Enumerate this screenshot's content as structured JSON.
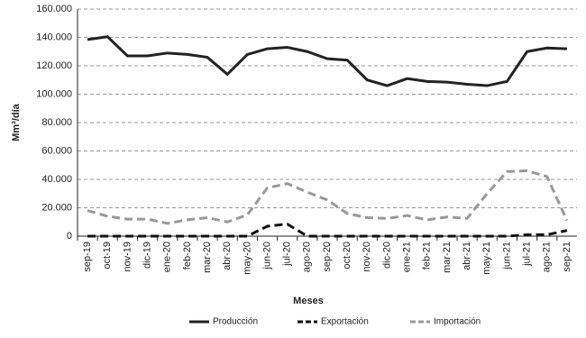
{
  "chart_data": {
    "type": "line",
    "x_label": "Meses",
    "y_label": "Mm³/día",
    "categories": [
      "sep-19",
      "oct-19",
      "nov-19",
      "dic-19",
      "ene-20",
      "feb-20",
      "mar-20",
      "abr-20",
      "may-20",
      "jun-20",
      "jul-20",
      "ago-20",
      "sep-20",
      "oct-20",
      "nov-20",
      "dic-20",
      "ene-21",
      "feb-21",
      "mar-21",
      "abr-21",
      "may-21",
      "jun-21",
      "jul-21",
      "ago-21",
      "sep-21"
    ],
    "series": [
      {
        "name": "Producción",
        "color": "#222222",
        "dash": "solid",
        "values": [
          138500,
          140500,
          127000,
          127000,
          129000,
          128000,
          126000,
          114000,
          128000,
          132000,
          133000,
          130000,
          125000,
          124000,
          110000,
          106000,
          111000,
          109000,
          108500,
          107000,
          106000,
          109000,
          130000,
          132500,
          132000
        ]
      },
      {
        "name": "Exportación",
        "color": "#111111",
        "dash": "dashed",
        "values": [
          0,
          0,
          0,
          0,
          0,
          0,
          0,
          0,
          0,
          7000,
          8500,
          0,
          0,
          0,
          0,
          0,
          0,
          0,
          0,
          0,
          0,
          0,
          1000,
          1000,
          4000
        ]
      },
      {
        "name": "Importación",
        "color": "#999999",
        "dash": "dashed",
        "values": [
          18000,
          14000,
          12000,
          12000,
          9000,
          11500,
          13000,
          10000,
          15000,
          34000,
          37000,
          31000,
          25500,
          16000,
          13000,
          12500,
          14500,
          11500,
          13500,
          12500,
          30000,
          45500,
          46000,
          42000,
          11000
        ]
      }
    ],
    "ylim": [
      0,
      160000
    ],
    "yticks": [
      0,
      {
        "value": 20000,
        "label": "20.000"
      },
      {
        "value": 40000,
        "label": "40.000"
      },
      {
        "value": 60000,
        "label": "60.000"
      },
      {
        "value": 80000,
        "label": "80.000"
      },
      {
        "value": 100000,
        "label": "100.000"
      },
      {
        "value": 120000,
        "label": "120.000"
      },
      {
        "value": 140000,
        "label": "140.000"
      },
      {
        "value": 160000,
        "label": "160.000"
      }
    ],
    "grid": true,
    "legend": "bottom"
  }
}
